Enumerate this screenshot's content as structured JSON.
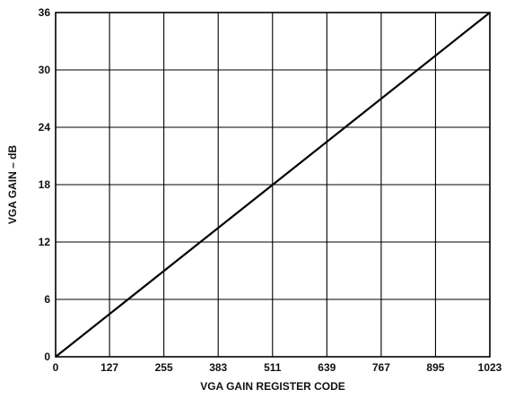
{
  "chart_data": {
    "type": "line",
    "title": "",
    "xlabel": "VGA GAIN REGISTER CODE",
    "ylabel": "VGA GAIN – dB",
    "xlim": [
      0,
      1023
    ],
    "ylim": [
      0,
      36
    ],
    "x_ticks": [
      0,
      127,
      255,
      383,
      511,
      639,
      767,
      895,
      1023
    ],
    "y_ticks": [
      0,
      6,
      12,
      18,
      24,
      30,
      36
    ],
    "grid": true,
    "legend": "none",
    "series": [
      {
        "x": [
          0,
          1023
        ],
        "y": [
          0,
          36
        ],
        "color": "#000000"
      }
    ]
  }
}
